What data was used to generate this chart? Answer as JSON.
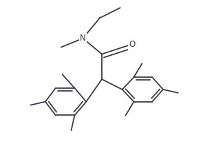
{
  "bg_color": "#ffffff",
  "line_color": "#3a3a4a",
  "text_color": "#3a3a4a",
  "linewidth": 1.3,
  "fontsize": 8.5,
  "figsize": [
    2.95,
    2.44
  ],
  "dpi": 100
}
